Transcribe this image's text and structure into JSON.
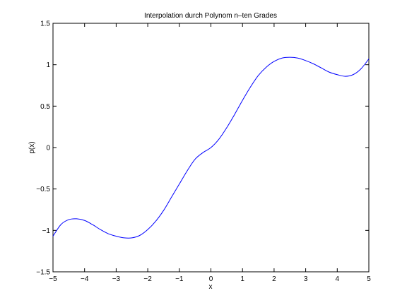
{
  "chart_data": {
    "type": "line",
    "title": "Interpolation durch Polynom n–ten Grades",
    "xlabel": "x",
    "ylabel": "p(x)",
    "xlim": [
      -5,
      5
    ],
    "ylim": [
      -1.5,
      1.5
    ],
    "grid": false,
    "xticks": [
      "−5",
      "−4",
      "−3",
      "−2",
      "−1",
      "0",
      "1",
      "2",
      "3",
      "4",
      "5"
    ],
    "yticks": [
      "−1.5",
      "−1",
      "−0.5",
      "0",
      "0.5",
      "1",
      "1.5"
    ],
    "line_color": "#0000ff",
    "series": [
      {
        "x": [
          -5,
          -4.75,
          -4.5,
          -4.25,
          -4,
          -3.75,
          -3.5,
          -3.25,
          -3,
          -2.75,
          -2.5,
          -2.25,
          -2,
          -1.75,
          -1.5,
          -1.25,
          -1,
          -0.75,
          -0.5,
          -0.25,
          0,
          0.25,
          0.5,
          0.75,
          1,
          1.25,
          1.5,
          1.75,
          2,
          2.25,
          2.5,
          2.75,
          3,
          3.25,
          3.5,
          3.75,
          4,
          4.25,
          4.5,
          4.75,
          5
        ],
        "y": [
          -1.07,
          -0.93,
          -0.87,
          -0.86,
          -0.88,
          -0.93,
          -0.99,
          -1.04,
          -1.07,
          -1.09,
          -1.09,
          -1.06,
          -0.99,
          -0.89,
          -0.76,
          -0.6,
          -0.44,
          -0.28,
          -0.14,
          -0.06,
          0.0,
          0.1,
          0.24,
          0.4,
          0.57,
          0.73,
          0.87,
          0.97,
          1.04,
          1.08,
          1.09,
          1.08,
          1.05,
          1.01,
          0.96,
          0.91,
          0.88,
          0.86,
          0.88,
          0.95,
          1.07
        ]
      }
    ]
  }
}
